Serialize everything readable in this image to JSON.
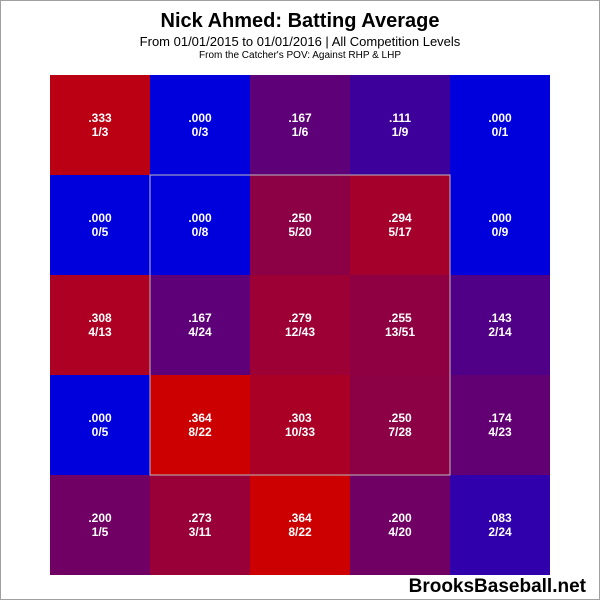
{
  "header": {
    "title": "Nick Ahmed: Batting Average",
    "subtitle": "From 01/01/2015 to 01/01/2016 | All Competition Levels",
    "subtitle2": "From the Catcher's POV:   Against RHP & LHP"
  },
  "footer": {
    "watermark": "BrooksBaseball.net"
  },
  "colors": {
    "low": "#0000dd",
    "high": "#cc0000",
    "strike_zone_border": "#bbbbbb",
    "cell_text": "#ffffff"
  },
  "chart_data": {
    "type": "heatmap",
    "rows": 5,
    "cols": 5,
    "strike_zone": {
      "rows": [
        1,
        3
      ],
      "cols": [
        1,
        3
      ]
    },
    "value_range": [
      0,
      0.364
    ],
    "cells": [
      [
        {
          "avg": ".333",
          "count": "1/3",
          "value": 0.333
        },
        {
          "avg": ".000",
          "count": "0/3",
          "value": 0.0
        },
        {
          "avg": ".167",
          "count": "1/6",
          "value": 0.167
        },
        {
          "avg": ".111",
          "count": "1/9",
          "value": 0.111
        },
        {
          "avg": ".000",
          "count": "0/1",
          "value": 0.0
        }
      ],
      [
        {
          "avg": ".000",
          "count": "0/5",
          "value": 0.0
        },
        {
          "avg": ".000",
          "count": "0/8",
          "value": 0.0
        },
        {
          "avg": ".250",
          "count": "5/20",
          "value": 0.25
        },
        {
          "avg": ".294",
          "count": "5/17",
          "value": 0.294
        },
        {
          "avg": ".000",
          "count": "0/9",
          "value": 0.0
        }
      ],
      [
        {
          "avg": ".308",
          "count": "4/13",
          "value": 0.308
        },
        {
          "avg": ".167",
          "count": "4/24",
          "value": 0.167
        },
        {
          "avg": ".279",
          "count": "12/43",
          "value": 0.279
        },
        {
          "avg": ".255",
          "count": "13/51",
          "value": 0.255
        },
        {
          "avg": ".143",
          "count": "2/14",
          "value": 0.143
        }
      ],
      [
        {
          "avg": ".000",
          "count": "0/5",
          "value": 0.0
        },
        {
          "avg": ".364",
          "count": "8/22",
          "value": 0.364
        },
        {
          "avg": ".303",
          "count": "10/33",
          "value": 0.303
        },
        {
          "avg": ".250",
          "count": "7/28",
          "value": 0.25
        },
        {
          "avg": ".174",
          "count": "4/23",
          "value": 0.174
        }
      ],
      [
        {
          "avg": ".200",
          "count": "1/5",
          "value": 0.2
        },
        {
          "avg": ".273",
          "count": "3/11",
          "value": 0.273
        },
        {
          "avg": ".364",
          "count": "8/22",
          "value": 0.364
        },
        {
          "avg": ".200",
          "count": "4/20",
          "value": 0.2
        },
        {
          "avg": ".083",
          "count": "2/24",
          "value": 0.083
        }
      ]
    ]
  }
}
